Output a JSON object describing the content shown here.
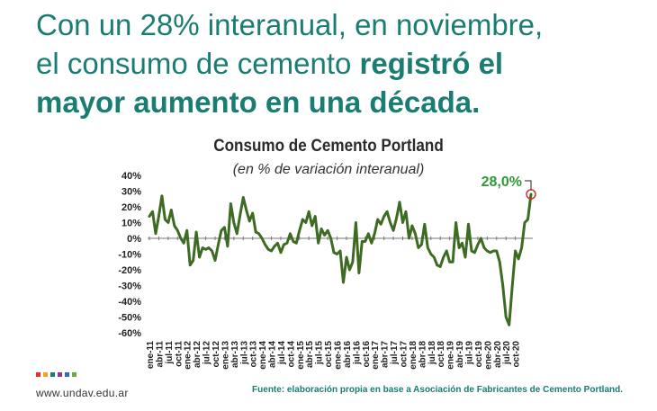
{
  "headline": {
    "part1": "Con un 28% interanual, en noviembre,",
    "part2": "el consumo de cemento ",
    "part3": "registró el",
    "part4": "mayor aumento en una década."
  },
  "colors": {
    "headline": "#1a7d72",
    "series": "#3d6b22",
    "highlight_label": "#2e9a36",
    "highlight_circle": "#c0392b"
  },
  "footer": {
    "url": "www.undav.edu.ar",
    "source": "Fuente: elaboración propia en base a Asociación de Fabricantes de Cemento Portland.",
    "logo_colors": [
      "#e4322b",
      "#f4a21b",
      "#1a7d72",
      "#8e3b8f",
      "#2f6db5",
      "#6aa842"
    ]
  },
  "chart_data": {
    "type": "line",
    "title": "Consumo de Cemento Portland",
    "subtitle": "(en % de variación interanual)",
    "xlabel": "",
    "ylabel": "",
    "ylim": [
      -60,
      40
    ],
    "yticks": [
      40,
      30,
      20,
      10,
      0,
      -10,
      -20,
      -30,
      -40,
      -50,
      -60
    ],
    "ytick_labels": [
      "40%",
      "30%",
      "20%",
      "10%",
      "0%",
      "-10%",
      "-20%",
      "-30%",
      "-40%",
      "-50%",
      "-60%"
    ],
    "xtick_labels": [
      "ene-11",
      "abr-11",
      "jul-11",
      "oct-11",
      "ene-12",
      "abr-12",
      "jul-12",
      "oct-12",
      "ene-13",
      "abr-13",
      "jul-13",
      "oct-13",
      "ene-14",
      "abr-14",
      "jul-14",
      "oct-14",
      "ene-15",
      "abr-15",
      "jul-15",
      "oct-15",
      "ene-16",
      "abr-16",
      "jul-16",
      "oct-16",
      "ene-17",
      "abr-17",
      "jul-17",
      "oct-17",
      "ene-18",
      "abr-18",
      "jul-18",
      "oct-18",
      "ene-19",
      "abr-19",
      "jul-19",
      "oct-19",
      "ene-20",
      "abr-20",
      "jul-20",
      "oct-20"
    ],
    "grid": false,
    "annotation": {
      "label": "28,0%",
      "value": 28.0,
      "period": "nov-20"
    },
    "series": [
      {
        "values": [
          14,
          17,
          3,
          14,
          27,
          12,
          10,
          18,
          8,
          5,
          0,
          -3,
          5,
          -17,
          -14,
          4,
          -12,
          -6,
          -7,
          -6,
          -8,
          -14,
          -4,
          5,
          7,
          -5,
          22,
          10,
          3,
          15,
          26,
          18,
          11,
          16,
          4,
          3,
          0,
          -4,
          -7,
          -8,
          -5,
          -3,
          -9,
          -4,
          -3,
          3,
          -2,
          -3,
          5,
          12,
          10,
          17,
          8,
          14,
          -3,
          6,
          2,
          5,
          0,
          -9,
          -10,
          -8,
          -28,
          -12,
          -20,
          -15,
          10,
          -22,
          -2,
          -2,
          3,
          -3,
          3,
          12,
          9,
          14,
          17,
          10,
          5,
          13,
          23,
          10,
          17,
          0,
          8,
          3,
          -6,
          -4,
          9,
          -6,
          -10,
          -12,
          -17,
          -18,
          -12,
          -8,
          -15,
          -15,
          10,
          -6,
          -3,
          -12,
          9,
          -8,
          -9,
          -4,
          0,
          -6,
          -8,
          -9,
          -8,
          -8,
          -15,
          -30,
          -50,
          -55,
          -31,
          -8,
          -13,
          -6,
          10,
          12,
          28
        ]
      }
    ]
  }
}
